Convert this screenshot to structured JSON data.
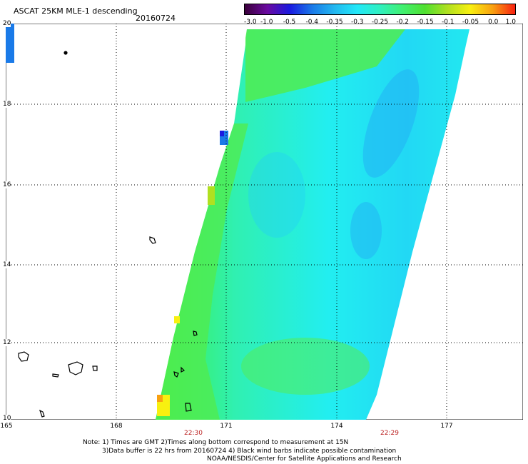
{
  "header": {
    "title": "ASCAT 25KM MLE-1 descending",
    "date": "20160724"
  },
  "colorbar": {
    "labels": [
      "-3.0",
      "-1.0",
      "-0.5",
      "-0.4",
      "-0.35",
      "-0.3",
      "-0.25",
      "-0.2",
      "-0.15",
      "-0.1",
      "-0.05",
      "0.0",
      "1.0"
    ],
    "colors": [
      "#3a003a",
      "#6a0aa0",
      "#1a1ae0",
      "#1a7ae8",
      "#22b8f0",
      "#22e8f8",
      "#30f0c0",
      "#40f070",
      "#50e030",
      "#b0e020",
      "#f8f010",
      "#f8a010",
      "#f82010"
    ]
  },
  "axes": {
    "lat_labels": [
      "20",
      "18",
      "16",
      "14",
      "12",
      "10"
    ],
    "lon_labels": [
      "165",
      "168",
      "171",
      "174",
      "177"
    ],
    "time_labels": [
      "22:30",
      "22:29"
    ]
  },
  "notes": {
    "line1": "Note: 1) Times are GMT 2)Times along bottom correspond to measurement at 15N",
    "line2": "3)Data buffer is 22 hrs from 20160724 4) Black wind barbs indicate possible contamination",
    "line3": "NOAA/NESDIS/Center for Satellite Applications and Research"
  }
}
